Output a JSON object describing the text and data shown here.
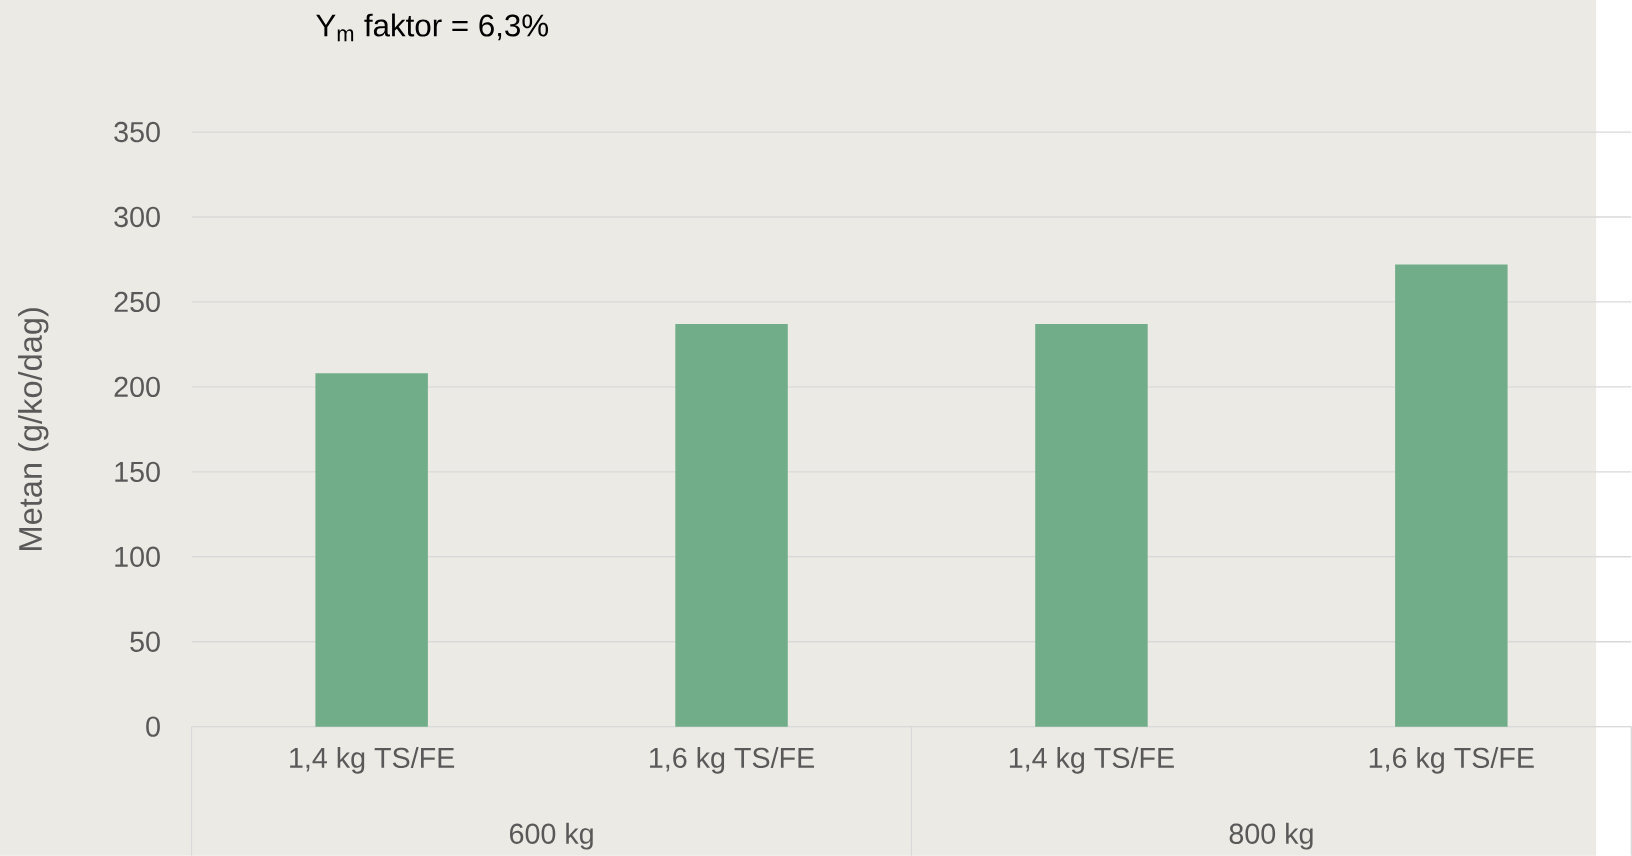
{
  "chart_data": {
    "type": "bar",
    "title": "Y$_{m}$ faktor = 6,3%",
    "ylabel": "Metan (g/ko/dag)",
    "categories": [
      "1,4 kg TS/FE",
      "1,6 kg TS/FE",
      "1,4 kg TS/FE",
      "1,6 kg TS/FE"
    ],
    "values": [
      208,
      237,
      237,
      272
    ],
    "color": "#72ad89",
    "ylim": [
      0,
      350
    ],
    "yticks": [
      0,
      50,
      100,
      150,
      200,
      250,
      300,
      350
    ],
    "grid": "y",
    "annotations": [
      "600 kg",
      "800 kg"
    ]
  }
}
